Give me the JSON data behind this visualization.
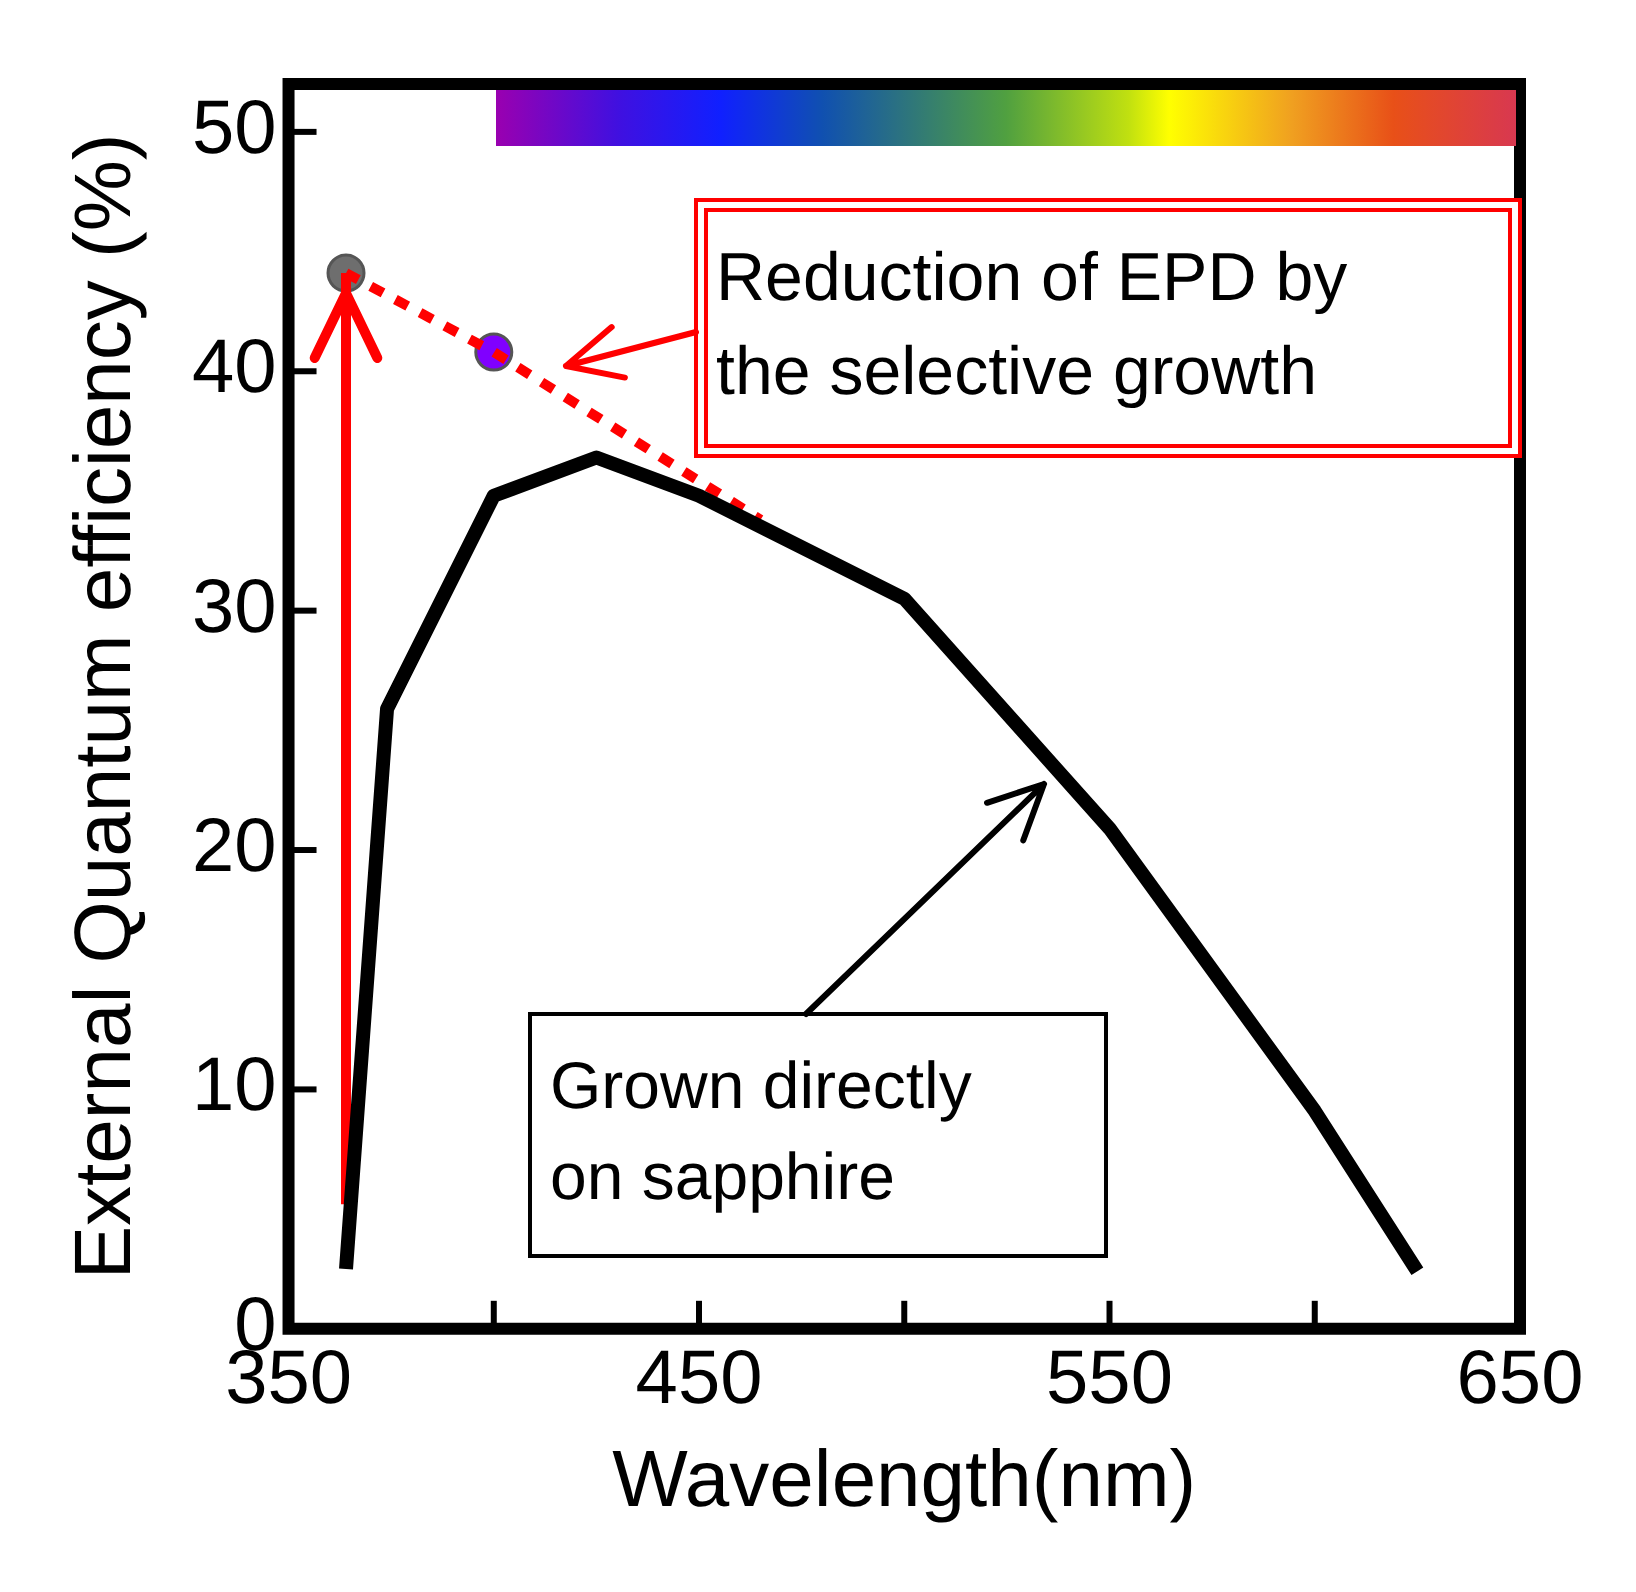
{
  "chart_data": {
    "type": "line",
    "xlabel": "Wavelength(nm)",
    "ylabel": "External Quantum efficiency (%)",
    "xlim": [
      350,
      650
    ],
    "xticks": [
      350,
      {
        "value": 400,
        "label": null
      },
      450,
      {
        "value": 500,
        "label": null
      },
      550,
      {
        "value": 600,
        "label": null
      },
      650
    ],
    "ylim": [
      0,
      52
    ],
    "yticks": [
      0,
      10,
      20,
      30,
      40,
      50
    ],
    "grid": false,
    "legend": false,
    "series": [
      {
        "type": "line",
        "color": "#000000",
        "marker": "none",
        "x": [
          364,
          374,
          400,
          425,
          450,
          500,
          550,
          600,
          625
        ],
        "values": [
          2.5,
          25.9,
          34.8,
          36.4,
          34.8,
          30.5,
          20.9,
          9.1,
          2.4
        ]
      },
      {
        "type": "line",
        "color": "#ff0000",
        "marker": "none",
        "line_style": "dotted",
        "x": [
          364,
          400,
          465
        ],
        "values": [
          44.1,
          40.8,
          33.8
        ]
      },
      {
        "type": "line",
        "color": "#ff0000",
        "marker": "none",
        "x": [
          364,
          364
        ],
        "values": [
          5.2,
          44.1
        ]
      },
      {
        "type": "scatter",
        "marker": "circle",
        "colors": [
          "#6e6e6e",
          "#8000ff"
        ],
        "x": [
          364,
          400
        ],
        "values": [
          44.1,
          40.8
        ]
      }
    ],
    "annotations": [
      "Reduction of EPD by\nthe selective growth",
      "Grown directly\non sapphire"
    ]
  }
}
